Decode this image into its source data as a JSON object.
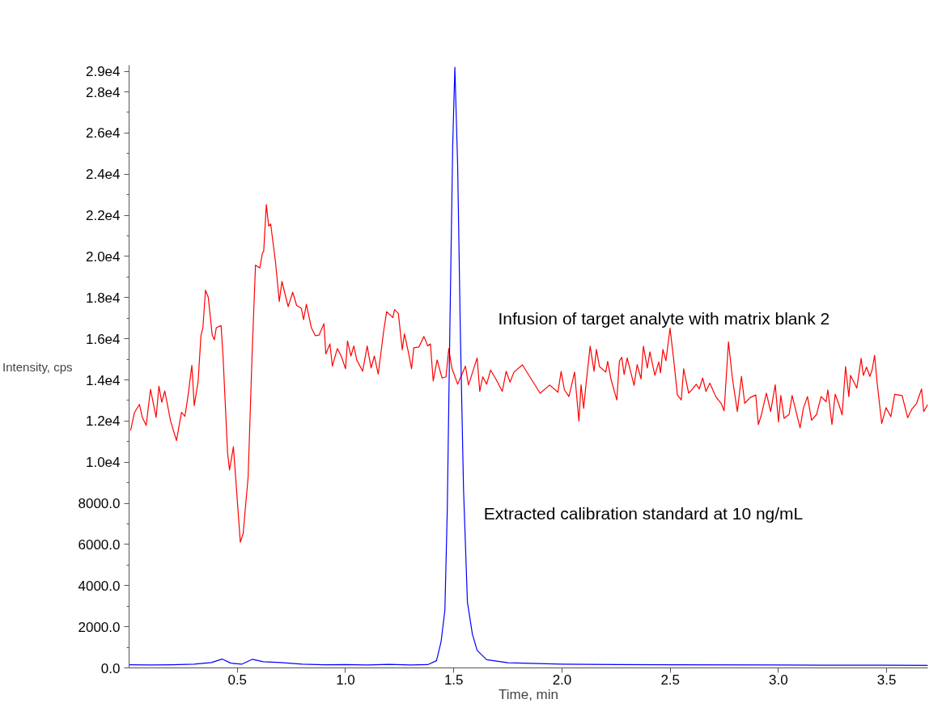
{
  "chart_data": {
    "type": "line",
    "xlabel": "Time, min",
    "ylabel": "Intensity, cps",
    "xlim": [
      0,
      3.69
    ],
    "ylim": [
      0,
      29300
    ],
    "xticks": [
      0.5,
      {
        "value": 1.0,
        "label": "1.0"
      },
      1.5,
      {
        "value": 2.0,
        "label": "2.0"
      },
      2.5,
      {
        "value": 3.0,
        "label": "3.0"
      },
      3.5
    ],
    "yticks": [
      {
        "value": 0,
        "label": "0.0"
      },
      {
        "value": 1000,
        "label": null
      },
      {
        "value": 2000,
        "label": "2000.0"
      },
      {
        "value": 3000,
        "label": null
      },
      {
        "value": 4000,
        "label": "4000.0"
      },
      {
        "value": 5000,
        "label": null
      },
      {
        "value": 6000,
        "label": "6000.0"
      },
      {
        "value": 7000,
        "label": null
      },
      {
        "value": 8000,
        "label": "8000.0"
      },
      {
        "value": 9000,
        "label": null
      },
      {
        "value": 10000,
        "label": "1.0e4"
      },
      {
        "value": 11000,
        "label": null
      },
      {
        "value": 12000,
        "label": "1.2e4"
      },
      {
        "value": 13000,
        "label": null
      },
      {
        "value": 14000,
        "label": "1.4e4"
      },
      {
        "value": 15000,
        "label": null
      },
      {
        "value": 16000,
        "label": "1.6e4"
      },
      {
        "value": 17000,
        "label": null
      },
      {
        "value": 18000,
        "label": "1.8e4"
      },
      {
        "value": 19000,
        "label": null
      },
      {
        "value": 20000,
        "label": "2.0e4"
      },
      {
        "value": 21000,
        "label": null
      },
      {
        "value": 22000,
        "label": "2.2e4"
      },
      {
        "value": 23000,
        "label": null
      },
      {
        "value": 24000,
        "label": "2.4e4"
      },
      {
        "value": 25000,
        "label": null
      },
      {
        "value": 26000,
        "label": "2.6e4"
      },
      {
        "value": 27000,
        "label": null
      },
      {
        "value": 28000,
        "label": "2.8e4"
      },
      {
        "value": 29000,
        "label": "2.9e4"
      }
    ],
    "grid": false,
    "legend": false,
    "marker": "none",
    "line_style": "solid",
    "series": [
      {
        "name": "Infusion of target analyte with matrix blank 2",
        "color": "#ff0000",
        "x": [
          0.007,
          0.025,
          0.048,
          0.061,
          0.079,
          0.099,
          0.125,
          0.138,
          0.151,
          0.165,
          0.192,
          0.219,
          0.242,
          0.258,
          0.272,
          0.29,
          0.301,
          0.319,
          0.332,
          0.341,
          0.353,
          0.366,
          0.384,
          0.394,
          0.403,
          0.425,
          0.434,
          0.455,
          0.464,
          0.482,
          0.514,
          0.527,
          0.55,
          0.568,
          0.584,
          0.604,
          0.616,
          0.622,
          0.634,
          0.645,
          0.654,
          0.676,
          0.694,
          0.706,
          0.735,
          0.756,
          0.774,
          0.796,
          0.806,
          0.819,
          0.842,
          0.86,
          0.878,
          0.9,
          0.909,
          0.928,
          0.939,
          0.962,
          0.98,
          1.0,
          1.009,
          1.025,
          1.038,
          1.052,
          1.079,
          1.1,
          1.118,
          1.133,
          1.151,
          1.177,
          1.19,
          1.219,
          1.226,
          1.244,
          1.262,
          1.272,
          1.29,
          1.305,
          1.315,
          1.339,
          1.362,
          1.38,
          1.392,
          1.405,
          1.423,
          1.446,
          1.464,
          1.477,
          1.491,
          1.518,
          1.53,
          1.554,
          1.568,
          1.608,
          1.62,
          1.634,
          1.652,
          1.67,
          1.697,
          1.724,
          1.742,
          1.76,
          1.778,
          1.817,
          1.899,
          1.943,
          1.981,
          1.996,
          2.011,
          2.032,
          2.058,
          2.078,
          2.088,
          2.1,
          2.111,
          2.13,
          2.148,
          2.159,
          2.173,
          2.202,
          2.211,
          2.227,
          2.253,
          2.265,
          2.276,
          2.287,
          2.301,
          2.333,
          2.347,
          2.365,
          2.376,
          2.394,
          2.406,
          2.429,
          2.447,
          2.455,
          2.466,
          2.48,
          2.499,
          2.516,
          2.533,
          2.551,
          2.562,
          2.585,
          2.6,
          2.62,
          2.634,
          2.65,
          2.665,
          2.683,
          2.71,
          2.735,
          2.749,
          2.769,
          2.787,
          2.81,
          2.829,
          2.844,
          2.869,
          2.895,
          2.907,
          2.921,
          2.944,
          2.964,
          2.985,
          3.0,
          3.011,
          3.026,
          3.049,
          3.063,
          3.086,
          3.1,
          3.115,
          3.134,
          3.153,
          3.176,
          3.197,
          3.22,
          3.228,
          3.247,
          3.262,
          3.28,
          3.294,
          3.31,
          3.325,
          3.333,
          3.362,
          3.382,
          3.392,
          3.407,
          3.422,
          3.433,
          3.444,
          3.456,
          3.477,
          3.497,
          3.519,
          3.537,
          3.571,
          3.597,
          3.616,
          3.638,
          3.661,
          3.671,
          3.69
        ],
        "values": [
          11540,
          12420,
          12810,
          12180,
          11790,
          13540,
          12180,
          13690,
          12910,
          13460,
          11990,
          11050,
          12420,
          12230,
          13200,
          14710,
          12750,
          13930,
          16150,
          16540,
          18360,
          18010,
          16180,
          15950,
          16540,
          16640,
          15160,
          10460,
          9620,
          10750,
          6110,
          6540,
          9280,
          15160,
          19580,
          19440,
          20160,
          20260,
          22520,
          21480,
          21580,
          19770,
          17810,
          18790,
          17560,
          18260,
          17620,
          17480,
          16930,
          17670,
          16540,
          16150,
          16180,
          16730,
          15260,
          15750,
          14670,
          15520,
          15160,
          14540,
          15890,
          15160,
          15650,
          14970,
          14420,
          15650,
          14580,
          15160,
          14280,
          16440,
          17320,
          17030,
          17420,
          17230,
          15460,
          16240,
          15360,
          14540,
          15560,
          15600,
          16110,
          15650,
          15750,
          13950,
          14970,
          14090,
          14150,
          15520,
          14580,
          13790,
          14090,
          14670,
          13750,
          15070,
          13440,
          14150,
          13790,
          14480,
          13990,
          13440,
          14420,
          13890,
          14380,
          14730,
          13350,
          13750,
          13400,
          14410,
          13520,
          13190,
          14380,
          12000,
          13760,
          12620,
          13790,
          15640,
          14420,
          15480,
          14650,
          14380,
          14900,
          14000,
          13020,
          14900,
          15100,
          14260,
          15070,
          13730,
          14740,
          14050,
          15640,
          14580,
          15360,
          14220,
          14870,
          14340,
          15480,
          14930,
          16510,
          14980,
          13270,
          13020,
          14540,
          13360,
          13520,
          13790,
          13560,
          14090,
          13440,
          13840,
          13190,
          12860,
          12500,
          15850,
          14090,
          12460,
          14170,
          12860,
          13140,
          13270,
          11830,
          12300,
          13360,
          12460,
          13760,
          11960,
          13240,
          12130,
          12320,
          13240,
          12260,
          11670,
          12620,
          13190,
          12040,
          12320,
          13190,
          12940,
          13520,
          11830,
          13300,
          12780,
          12300,
          14650,
          13190,
          14220,
          13600,
          15050,
          14220,
          14620,
          14170,
          14500,
          15200,
          13840,
          11880,
          12650,
          12210,
          13300,
          13240,
          12160,
          12580,
          12860,
          13560,
          12460,
          12810
        ]
      },
      {
        "name": "Extracted calibration standard at 10 ng/mL",
        "color": "#0000ff",
        "x": [
          0.0,
          0.1,
          0.2,
          0.3,
          0.38,
          0.43,
          0.47,
          0.52,
          0.57,
          0.62,
          0.7,
          0.8,
          0.9,
          1.0,
          1.1,
          1.2,
          1.3,
          1.38,
          1.42,
          1.441,
          1.459,
          1.47,
          1.482,
          1.495,
          1.505,
          1.518,
          1.53,
          1.545,
          1.563,
          1.586,
          1.608,
          1.652,
          1.75,
          2.0,
          2.5,
          3.0,
          3.5,
          3.69
        ],
        "values": [
          150,
          140,
          150,
          180,
          260,
          430,
          230,
          180,
          420,
          300,
          260,
          180,
          150,
          160,
          140,
          170,
          140,
          160,
          350,
          1250,
          2810,
          7710,
          16540,
          25360,
          29200,
          24380,
          16540,
          8700,
          3200,
          1640,
          850,
          400,
          250,
          180,
          150,
          140,
          130,
          120
        ]
      }
    ]
  }
}
